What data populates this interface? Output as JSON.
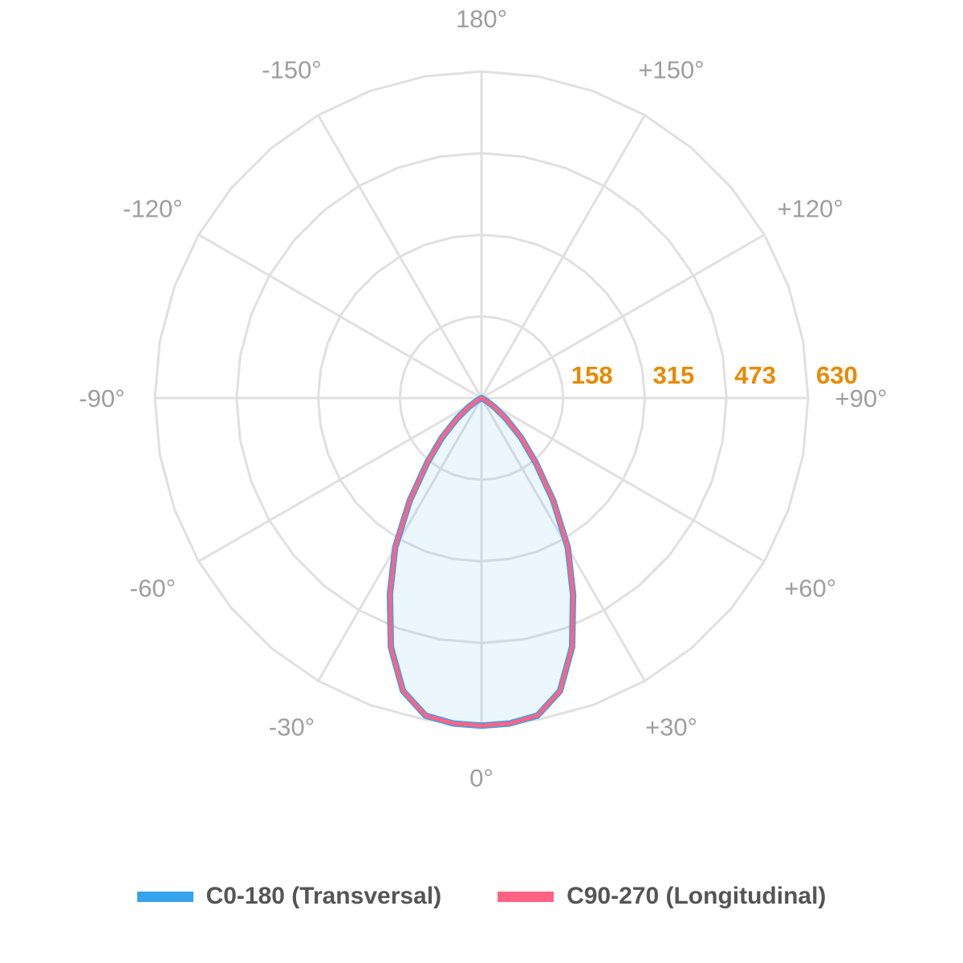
{
  "chart_data": {
    "type": "polar-line",
    "angle_labels": [
      "180°",
      "+150°",
      "+120°",
      "+90°",
      "+60°",
      "+30°",
      "0°",
      "-30°",
      "-60°",
      "-90°",
      "-120°",
      "-150°"
    ],
    "angle_label_values": [
      180,
      150,
      120,
      90,
      60,
      30,
      0,
      -30,
      -60,
      -90,
      -120,
      -150
    ],
    "radial_ticks": [
      "158",
      "315",
      "473",
      "630"
    ],
    "radial_tick_values": [
      157.5,
      315,
      472.5,
      630
    ],
    "rmax": 630,
    "grid": true,
    "legend_position": "bottom",
    "angles": [
      -90,
      -85,
      -80,
      -75,
      -70,
      -65,
      -60,
      -55,
      -50,
      -45,
      -40,
      -35,
      -30,
      -25,
      -20,
      -15,
      -10,
      -5,
      0,
      5,
      10,
      15,
      20,
      25,
      30,
      35,
      40,
      45,
      50,
      55,
      60,
      65,
      70,
      75,
      80,
      85,
      90
    ],
    "series": [
      {
        "name": "C0-180 (Transversal)",
        "color": "#36a2eb",
        "values": [
          0,
          0,
          0,
          0,
          0,
          0,
          10,
          30,
          62,
          108,
          163,
          241,
          333,
          418,
          511,
          585,
          622,
          630,
          632,
          630,
          622,
          585,
          511,
          418,
          333,
          241,
          163,
          108,
          62,
          30,
          10,
          0,
          0,
          0,
          0,
          0,
          0
        ]
      },
      {
        "name": "C90-270 (Longitudinal)",
        "color": "#ff6384",
        "values": [
          0,
          0,
          0,
          0,
          0,
          0,
          10,
          30,
          62,
          108,
          163,
          241,
          333,
          418,
          511,
          585,
          622,
          630,
          632,
          630,
          622,
          585,
          511,
          418,
          333,
          241,
          163,
          108,
          62,
          30,
          10,
          0,
          0,
          0,
          0,
          0,
          0
        ]
      }
    ]
  }
}
